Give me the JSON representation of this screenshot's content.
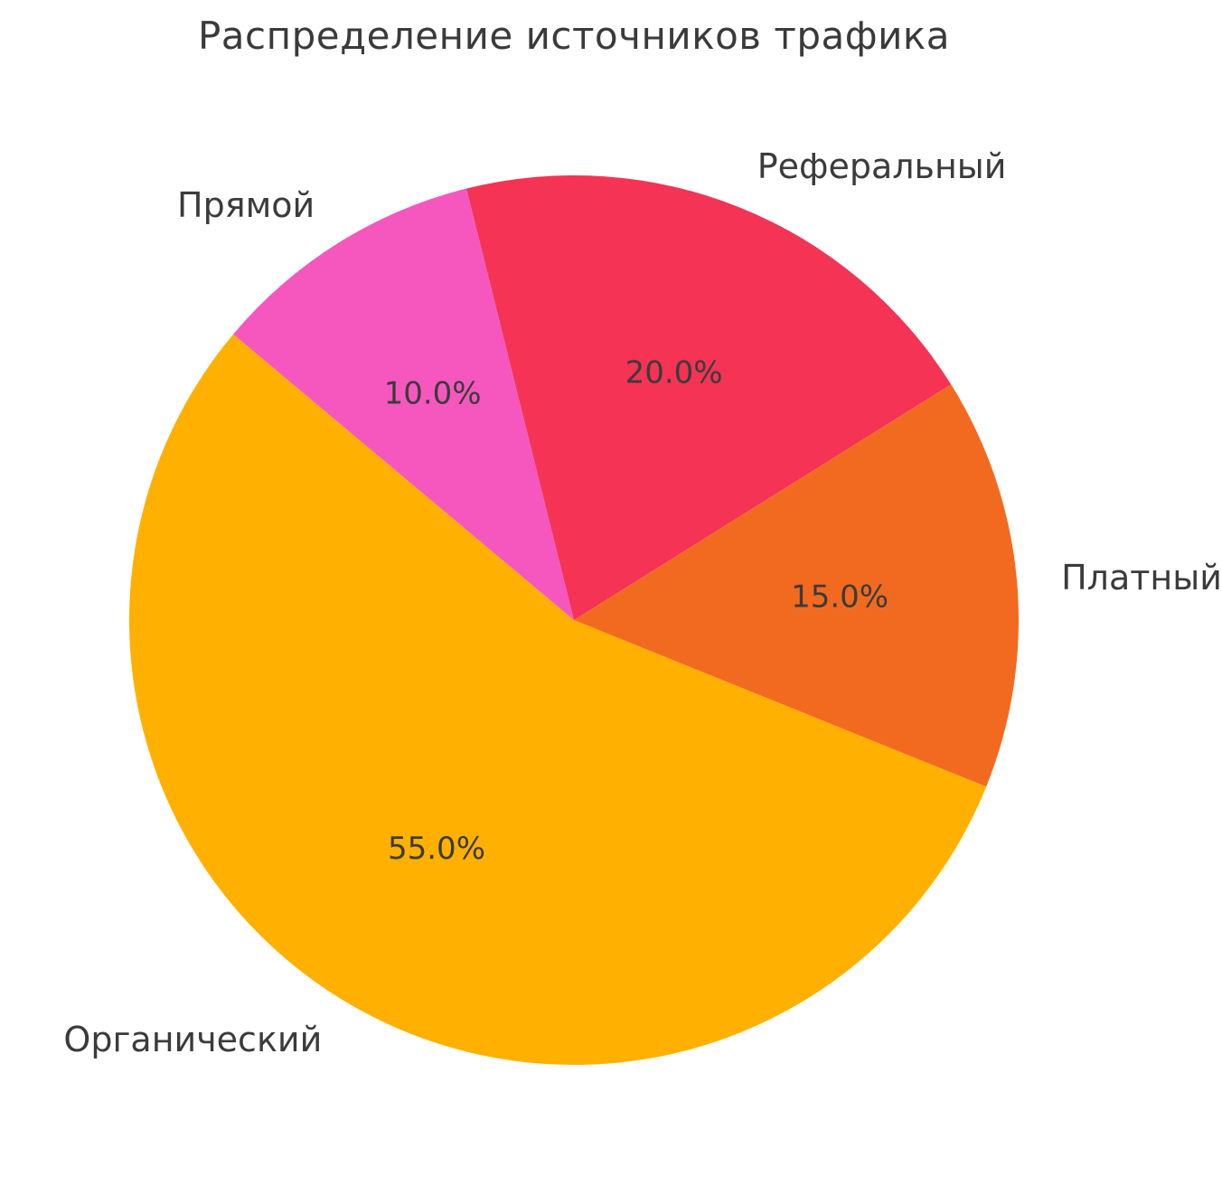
{
  "chart_data": {
    "type": "pie",
    "title": "Распределение источников трафика",
    "categories": [
      "Реферальный",
      "Платный",
      "Органический",
      "Прямой"
    ],
    "values": [
      20.0,
      15.0,
      55.0,
      10.0
    ],
    "total": 100,
    "slices": [
      {
        "label": "Реферальный",
        "value": 20.0,
        "pct_label": "20.0%",
        "color": "#f43355"
      },
      {
        "label": "Платный",
        "value": 15.0,
        "pct_label": "15.0%",
        "color": "#f26a1f"
      },
      {
        "label": "Органический",
        "value": 55.0,
        "pct_label": "55.0%",
        "color": "#ffb000"
      },
      {
        "label": "Прямой",
        "value": 10.0,
        "pct_label": "10.0%",
        "color": "#f657be"
      }
    ],
    "start_angle_deg": 104,
    "direction": "clockwise",
    "legend": "none",
    "label_position": "outside",
    "pct_position": "inside",
    "title_color": "#3a3a3a",
    "text_color": "#3b3b3b",
    "background": "#ffffff"
  }
}
